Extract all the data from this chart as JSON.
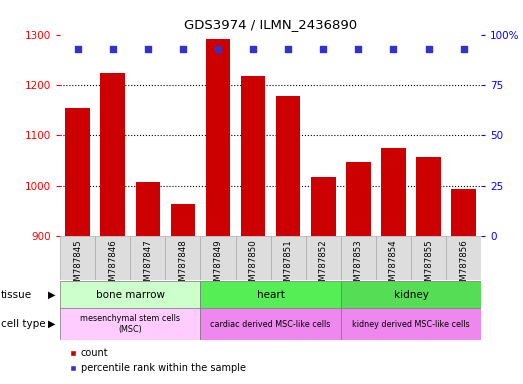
{
  "title": "GDS3974 / ILMN_2436890",
  "samples": [
    "GSM787845",
    "GSM787846",
    "GSM787847",
    "GSM787848",
    "GSM787849",
    "GSM787850",
    "GSM787851",
    "GSM787852",
    "GSM787853",
    "GSM787854",
    "GSM787855",
    "GSM787856"
  ],
  "counts": [
    1155,
    1223,
    1008,
    963,
    1291,
    1218,
    1178,
    1018,
    1047,
    1075,
    1058,
    994
  ],
  "percentile_ranks": [
    93,
    93,
    93,
    93,
    93,
    93,
    93,
    93,
    93,
    93,
    93,
    93
  ],
  "ylim_left": [
    900,
    1300
  ],
  "ylim_right": [
    0,
    100
  ],
  "yticks_left": [
    900,
    1000,
    1100,
    1200,
    1300
  ],
  "yticks_right": [
    0,
    25,
    50,
    75,
    100
  ],
  "bar_color": "#cc0000",
  "dot_color": "#3333cc",
  "bg_color": "#ffffff",
  "xticklabel_bg": "#dddddd",
  "tissue_groups": [
    {
      "label": "bone marrow",
      "start": 0,
      "end": 4,
      "color": "#ccffcc"
    },
    {
      "label": "heart",
      "start": 4,
      "end": 8,
      "color": "#55ee55"
    },
    {
      "label": "kidney",
      "start": 8,
      "end": 12,
      "color": "#55dd55"
    }
  ],
  "cell_type_groups": [
    {
      "label": "mesenchymal stem cells\n(MSC)",
      "start": 0,
      "end": 4,
      "color": "#ffccff"
    },
    {
      "label": "cardiac derived MSC-like cells",
      "start": 4,
      "end": 8,
      "color": "#ee88ee"
    },
    {
      "label": "kidney derived MSC-like cells",
      "start": 8,
      "end": 12,
      "color": "#ee88ee"
    }
  ],
  "legend_count_label": "count",
  "legend_pct_label": "percentile rank within the sample",
  "tissue_label": "tissue",
  "cell_type_label": "cell type"
}
